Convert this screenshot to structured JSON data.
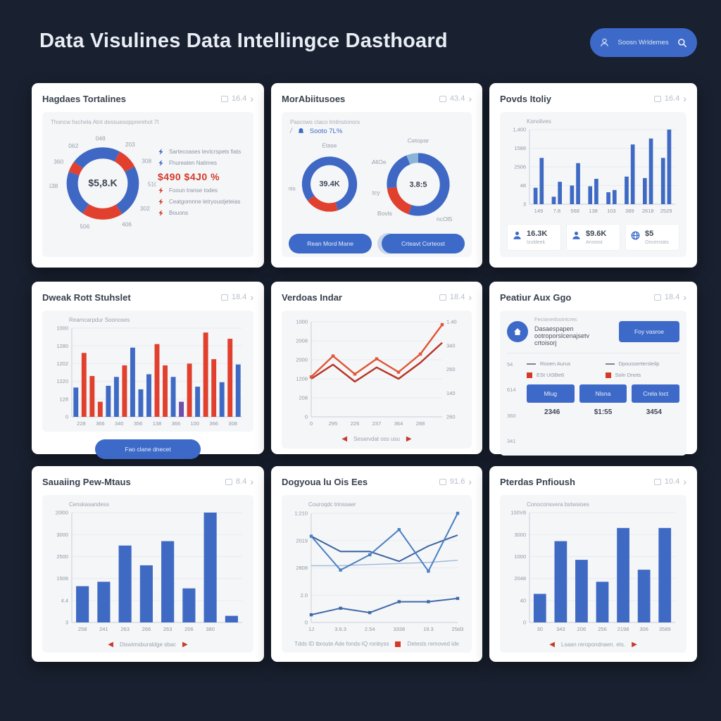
{
  "page": {
    "title": "Data Visulines Data Intellingce Dasthoard",
    "search_label": "Soosn Wrldemes"
  },
  "cards": [
    {
      "title": "Hagdaes Tortalines",
      "meta": "16.4",
      "subtitle": "Thoncw hschela Atnt dessuesopprerehot 7t",
      "legend": [
        {
          "label": "Sartecoases tevtcrspets fiats"
        },
        {
          "label": "Fhureaten Natimes"
        },
        {
          "label": "$490 $4J0 %"
        },
        {
          "label": "Fooun transe todes"
        },
        {
          "label": "Ceatgomnne letryoustjeteias"
        },
        {
          "label": "Bouons"
        }
      ],
      "chart": {
        "type": "donut",
        "center": "$5,8.K",
        "centerPx": 14,
        "segments": [
          {
            "from": 0,
            "to": 28,
            "color": "#3e68c4"
          },
          {
            "from": 28,
            "to": 62,
            "color": "#e0402d"
          },
          {
            "from": 62,
            "to": 148,
            "color": "#3e68c4"
          },
          {
            "from": 148,
            "to": 214,
            "color": "#e0402d"
          },
          {
            "from": 214,
            "to": 289,
            "color": "#3e68c4"
          },
          {
            "from": 289,
            "to": 307,
            "color": "#e0402d"
          },
          {
            "from": 307,
            "to": 360,
            "color": "#3e68c4"
          }
        ],
        "labels": [
          {
            "t": "048",
            "a": 357
          },
          {
            "t": "203",
            "a": 30
          },
          {
            "t": "308",
            "a": 60
          },
          {
            "t": "510",
            "a": 91
          },
          {
            "t": "302",
            "a": 124
          },
          {
            "t": "406",
            "a": 155
          },
          {
            "t": "506",
            "a": 197
          },
          {
            "t": "538",
            "a": 267
          },
          {
            "t": "360",
            "a": 299
          },
          {
            "t": "062",
            "a": 327
          }
        ]
      }
    },
    {
      "title": "MorAbiitusoes",
      "meta": "43.4",
      "subtitle": "Pascows ctaco Imtinstonors",
      "stat": "Sooto 7L%",
      "buttons": [
        "Rean Mord Mane",
        "Crteavt Corteost"
      ],
      "donutA": {
        "type": "donut",
        "center": "39.4K",
        "centerPx": 11,
        "top": "Etase",
        "segments": [
          {
            "from": 0,
            "to": 162,
            "color": "#3e68c4"
          },
          {
            "from": 162,
            "to": 233,
            "color": "#e0402d"
          },
          {
            "from": 233,
            "to": 360,
            "color": "#3e68c4"
          }
        ],
        "labels": [
          {
            "t": "Sebnis",
            "a": 263
          }
        ]
      },
      "donutB": {
        "type": "donut",
        "center": "3.8:5",
        "centerPx": 11,
        "top": "Cetopar",
        "segments": [
          {
            "from": 0,
            "to": 198,
            "color": "#3e68c4"
          },
          {
            "from": 198,
            "to": 263,
            "color": "#e0402d"
          },
          {
            "from": 263,
            "to": 338,
            "color": "#3e68c4"
          },
          {
            "from": 338,
            "to": 360,
            "color": "#8ab4d8"
          }
        ],
        "labels": [
          {
            "t": "IdM4Oe",
            "a": 305
          },
          {
            "t": "Dttcy",
            "a": 258
          },
          {
            "t": "Bovls",
            "a": 222
          },
          {
            "t": "ncOl5",
            "a": 152
          }
        ]
      }
    },
    {
      "title": "Povds Itoliy",
      "meta": "16.4",
      "chart_title": "Konolives",
      "chart": {
        "type": "bars",
        "color": "#3f6ac4",
        "yticks": [
          "1,400",
          "1588",
          "2506",
          "48",
          "3"
        ],
        "xlabels": [
          "149",
          "7.8",
          "568",
          "138",
          "103",
          "389",
          "2618",
          "2529"
        ],
        "pairs": [
          [
            0.22,
            0.62
          ],
          [
            0.1,
            0.3
          ],
          [
            0.25,
            0.55
          ],
          [
            0.24,
            0.34
          ],
          [
            0.16,
            0.19
          ],
          [
            0.37,
            0.8
          ],
          [
            0.35,
            0.88
          ],
          [
            0.62,
            1.0
          ]
        ]
      },
      "stats": [
        {
          "value": "16.3K",
          "label": "Izuldeek"
        },
        {
          "value": "$9.6K",
          "label": "Arvoost"
        },
        {
          "value": "$5",
          "label": "Oncerstats"
        }
      ]
    },
    {
      "title": "Dweak Rott Stuhslet",
      "meta": "18.4",
      "chart_title": "Reamcarpdur Soonoses",
      "button": "Fao clane dnecet",
      "chart": {
        "type": "bars",
        "colors": {
          "B": "#3f6ac4",
          "R": "#e0402d",
          "P": "#6f4fae"
        },
        "yticks": [
          "1000",
          "1280",
          "1202",
          "1220",
          "128",
          "0"
        ],
        "xlabels": [
          "228",
          "366",
          "340",
          "356",
          "138",
          "366",
          "100",
          "366",
          "308"
        ],
        "bars": [
          {
            "h": 0.33,
            "c": "B"
          },
          {
            "h": 0.72,
            "c": "R"
          },
          {
            "h": 0.46,
            "c": "R"
          },
          {
            "h": 0.17,
            "c": "R"
          },
          {
            "h": 0.35,
            "c": "B"
          },
          {
            "h": 0.45,
            "c": "B"
          },
          {
            "h": 0.58,
            "c": "R"
          },
          {
            "h": 0.78,
            "c": "B"
          },
          {
            "h": 0.31,
            "c": "B"
          },
          {
            "h": 0.48,
            "c": "B"
          },
          {
            "h": 0.82,
            "c": "R"
          },
          {
            "h": 0.58,
            "c": "R"
          },
          {
            "h": 0.45,
            "c": "B"
          },
          {
            "h": 0.17,
            "c": "P"
          },
          {
            "h": 0.6,
            "c": "R"
          },
          {
            "h": 0.34,
            "c": "B"
          },
          {
            "h": 0.95,
            "c": "R"
          },
          {
            "h": 0.65,
            "c": "R"
          },
          {
            "h": 0.39,
            "c": "B"
          },
          {
            "h": 0.88,
            "c": "R"
          },
          {
            "h": 0.59,
            "c": "B"
          }
        ]
      }
    },
    {
      "title": "Verdoas Indar",
      "meta": "18.4",
      "footer": "Sesarvdat oss usu",
      "chart": {
        "type": "lines",
        "yticks": [
          "1000",
          "2008",
          "2000",
          "1208",
          "208",
          "0"
        ],
        "rticks": [
          "1.40",
          "340",
          "260",
          "140",
          "260"
        ],
        "xlabels": [
          "0",
          "295",
          "226",
          "237",
          "364",
          "288"
        ],
        "series": [
          {
            "color": "#b63324",
            "w": 2.4,
            "pts": [
              0.4,
              0.55,
              0.37,
              0.52,
              0.4,
              0.57,
              0.78
            ]
          },
          {
            "color": "#e05535",
            "w": 2.4,
            "marker": true,
            "pts": [
              0.42,
              0.64,
              0.45,
              0.61,
              0.47,
              0.66,
              0.97
            ]
          }
        ]
      }
    },
    {
      "title": "Peatiur Aux Ggo",
      "meta": "18.4",
      "info_small": "Fecianedsointcrec",
      "info_text": "Dasaespapen ootroporslcenajsetv crtoisorj",
      "info_button": "Foy vasroe",
      "axis": [
        "54",
        "614",
        "360",
        "341"
      ],
      "legend_lines": [
        {
          "label": "Rooen Aurus"
        },
        {
          "label": "Dpoussertersleilp"
        }
      ],
      "legend_squares": [
        {
          "label": "ESt Ut3Be6"
        },
        {
          "label": "Soln Dnots"
        }
      ],
      "buttons": [
        "Mlug",
        "Nlsna",
        "Crela loct"
      ],
      "values": [
        "2346",
        "$1:55",
        "3454"
      ]
    },
    {
      "title": "Sauaiing Pew-Mtaus",
      "meta": "8.4",
      "chart_title": "Censkasandess",
      "footer": "Diswimsburaldge sbac",
      "chart": {
        "type": "bars",
        "color": "#3f6ac4",
        "yticks": [
          "20l00",
          "3000",
          "2500",
          "1506",
          "4.4",
          "3"
        ],
        "xlabels": [
          "258",
          "241",
          "263",
          "266",
          "263",
          "206",
          "380",
          ""
        ],
        "bars": [
          0.33,
          0.37,
          0.7,
          0.52,
          0.74,
          0.31,
          1.0,
          0.06
        ]
      }
    },
    {
      "title": "Dogyoua lu Ois Ees",
      "meta": "91.6",
      "chart_title": "Couroqdc trinssaer",
      "footer_left": "Tdds ID tbroute Ade fonds-IQ ronbyss",
      "footer_right": "Detests removed ide",
      "chart": {
        "type": "lines",
        "yticks": [
          "1:210",
          "2019",
          "2808",
          "2.0",
          "0"
        ],
        "xlabels": [
          "1J",
          "3.6.3",
          "2.54",
          "3338",
          "19.3",
          "25d3"
        ],
        "series": [
          {
            "color": "#9db8d8",
            "w": 1.4,
            "pts": [
              0.52,
              0.52,
              0.53,
              0.54,
              0.55,
              0.57
            ]
          },
          {
            "color": "#3a639e",
            "w": 2,
            "pts": [
              0.79,
              0.65,
              0.65,
              0.56,
              0.7,
              0.8
            ]
          },
          {
            "color": "#4a7fc1",
            "w": 2,
            "marker": true,
            "pts": [
              0.79,
              0.48,
              0.62,
              0.85,
              0.47,
              1.0
            ]
          },
          {
            "color": "#3f6aa8",
            "w": 2,
            "marker": true,
            "pts": [
              0.07,
              0.13,
              0.09,
              0.19,
              0.19,
              0.22
            ]
          }
        ]
      }
    },
    {
      "title": "Pterdas Pnfioush",
      "meta": "10.4",
      "chart_title": "Conoconsvera bstwsioes",
      "footer": "Lsaan reropondnaen. ets.",
      "chart": {
        "type": "bars",
        "color": "#3f6ac4",
        "yticks": [
          "100V8",
          "3000",
          "1000",
          "2048",
          "40",
          "0"
        ],
        "xlabels": [
          "30",
          "343",
          "206",
          "256",
          "2198",
          "306",
          "3589"
        ],
        "bars": [
          0.26,
          0.74,
          0.57,
          0.37,
          0.86,
          0.48,
          0.86
        ]
      }
    }
  ],
  "colors": {
    "background": "#19202f",
    "card": "#ffffff",
    "panel": "#f5f6f8",
    "primary_blue": "#3d6ac8",
    "bar_blue": "#3f6ac4",
    "red": "#e0402d",
    "purple": "#6f4fae",
    "light_blue": "#8ab4d8",
    "text_dark": "#39414f",
    "text_gray": "#9aa2ae"
  }
}
